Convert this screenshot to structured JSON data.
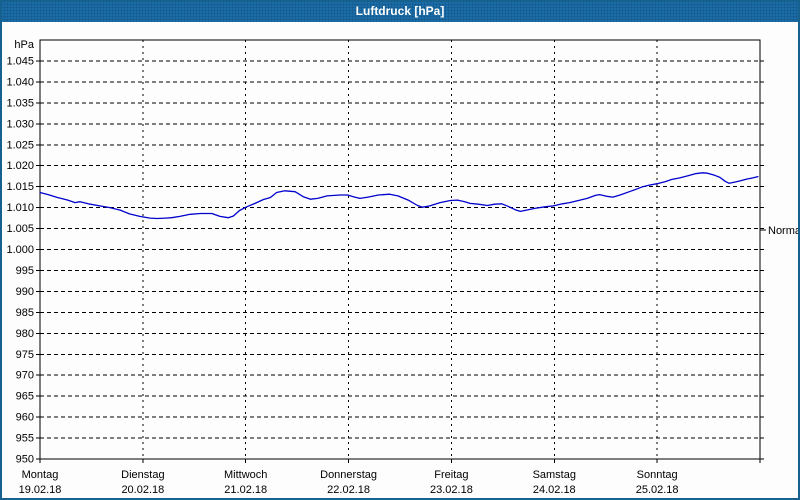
{
  "window": {
    "title": "Luftdruck [hPa]",
    "title_bar_color": "#1c6ca8",
    "border_color": "#17618f",
    "background_color": "#fdfdfd"
  },
  "chart_data": {
    "type": "line",
    "title": "Luftdruck [hPa]",
    "grid": true,
    "y_axis": {
      "unit_label": "hPa",
      "min": 950,
      "max": 1050,
      "gridline_step": 5,
      "ticks": [
        {
          "label": "1.045",
          "value": 1045
        },
        {
          "label": "1.040",
          "value": 1040
        },
        {
          "label": "1.035",
          "value": 1035
        },
        {
          "label": "1.030",
          "value": 1030
        },
        {
          "label": "1.025",
          "value": 1025
        },
        {
          "label": "1.020",
          "value": 1020
        },
        {
          "label": "1.015",
          "value": 1015
        },
        {
          "label": "1.010",
          "value": 1010
        },
        {
          "label": "1.005",
          "value": 1005
        },
        {
          "label": "1.000",
          "value": 1000
        },
        {
          "label": "995",
          "value": 995
        },
        {
          "label": "990",
          "value": 990
        },
        {
          "label": "985",
          "value": 985
        },
        {
          "label": "980",
          "value": 980
        },
        {
          "label": "975",
          "value": 975
        },
        {
          "label": "970",
          "value": 970
        },
        {
          "label": "965",
          "value": 965
        },
        {
          "label": "960",
          "value": 960
        },
        {
          "label": "955",
          "value": 955
        },
        {
          "label": "950",
          "value": 950
        }
      ]
    },
    "x_axis": {
      "span_days": 7,
      "days": [
        {
          "name": "Montag",
          "date": "19.02.18"
        },
        {
          "name": "Dienstag",
          "date": "20.02.18"
        },
        {
          "name": "Mittwoch",
          "date": "21.02.18"
        },
        {
          "name": "Donnerstag",
          "date": "22.02.18"
        },
        {
          "name": "Freitag",
          "date": "23.02.18"
        },
        {
          "name": "Samstag",
          "date": "24.02.18"
        },
        {
          "name": "Sonntag",
          "date": "25.02.18"
        }
      ]
    },
    "normal_marker": {
      "label": "Normal",
      "hpa": 1004.6
    },
    "series": [
      {
        "name": "Luftdruck",
        "color": "#0000cd",
        "points": [
          [
            0.0,
            1013.6
          ],
          [
            0.08,
            1013.1
          ],
          [
            0.17,
            1012.4
          ],
          [
            0.27,
            1011.8
          ],
          [
            0.34,
            1011.2
          ],
          [
            0.39,
            1011.4
          ],
          [
            0.47,
            1010.9
          ],
          [
            0.58,
            1010.4
          ],
          [
            0.68,
            1010.0
          ],
          [
            0.78,
            1009.4
          ],
          [
            0.87,
            1008.5
          ],
          [
            0.97,
            1007.9
          ],
          [
            1.07,
            1007.5
          ],
          [
            1.14,
            1007.4
          ],
          [
            1.22,
            1007.5
          ],
          [
            1.28,
            1007.6
          ],
          [
            1.36,
            1007.9
          ],
          [
            1.46,
            1008.4
          ],
          [
            1.56,
            1008.6
          ],
          [
            1.67,
            1008.6
          ],
          [
            1.75,
            1007.9
          ],
          [
            1.83,
            1007.6
          ],
          [
            1.88,
            1008.0
          ],
          [
            1.94,
            1009.3
          ],
          [
            2.01,
            1010.2
          ],
          [
            2.09,
            1011.0
          ],
          [
            2.17,
            1011.9
          ],
          [
            2.24,
            1012.4
          ],
          [
            2.3,
            1013.6
          ],
          [
            2.38,
            1014.0
          ],
          [
            2.48,
            1013.8
          ],
          [
            2.56,
            1012.6
          ],
          [
            2.63,
            1012.0
          ],
          [
            2.7,
            1012.2
          ],
          [
            2.79,
            1012.8
          ],
          [
            2.92,
            1013.0
          ],
          [
            2.99,
            1013.0
          ],
          [
            3.06,
            1012.5
          ],
          [
            3.11,
            1012.2
          ],
          [
            3.19,
            1012.5
          ],
          [
            3.29,
            1013.0
          ],
          [
            3.4,
            1013.2
          ],
          [
            3.48,
            1012.8
          ],
          [
            3.58,
            1011.8
          ],
          [
            3.67,
            1010.5
          ],
          [
            3.72,
            1010.1
          ],
          [
            3.79,
            1010.4
          ],
          [
            3.89,
            1011.2
          ],
          [
            3.99,
            1011.7
          ],
          [
            4.06,
            1011.8
          ],
          [
            4.13,
            1011.4
          ],
          [
            4.18,
            1011.0
          ],
          [
            4.26,
            1010.8
          ],
          [
            4.35,
            1010.5
          ],
          [
            4.42,
            1010.8
          ],
          [
            4.49,
            1010.9
          ],
          [
            4.55,
            1010.3
          ],
          [
            4.62,
            1009.5
          ],
          [
            4.67,
            1009.1
          ],
          [
            4.73,
            1009.4
          ],
          [
            4.81,
            1009.8
          ],
          [
            4.91,
            1010.2
          ],
          [
            4.99,
            1010.4
          ],
          [
            5.08,
            1010.9
          ],
          [
            5.15,
            1011.2
          ],
          [
            5.25,
            1011.8
          ],
          [
            5.32,
            1012.2
          ],
          [
            5.4,
            1012.9
          ],
          [
            5.44,
            1013.1
          ],
          [
            5.51,
            1012.7
          ],
          [
            5.57,
            1012.5
          ],
          [
            5.64,
            1013.0
          ],
          [
            5.74,
            1013.9
          ],
          [
            5.81,
            1014.5
          ],
          [
            5.86,
            1015.0
          ],
          [
            5.93,
            1015.4
          ],
          [
            6.0,
            1015.7
          ],
          [
            6.08,
            1016.2
          ],
          [
            6.14,
            1016.7
          ],
          [
            6.22,
            1017.1
          ],
          [
            6.3,
            1017.6
          ],
          [
            6.37,
            1018.1
          ],
          [
            6.44,
            1018.3
          ],
          [
            6.49,
            1018.2
          ],
          [
            6.56,
            1017.7
          ],
          [
            6.61,
            1017.2
          ],
          [
            6.66,
            1016.3
          ],
          [
            6.7,
            1015.8
          ],
          [
            6.76,
            1016.1
          ],
          [
            6.81,
            1016.4
          ],
          [
            6.87,
            1016.8
          ],
          [
            6.93,
            1017.1
          ],
          [
            6.98,
            1017.4
          ]
        ]
      }
    ]
  }
}
